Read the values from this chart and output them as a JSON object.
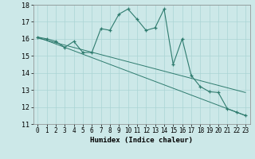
{
  "xlabel": "Humidex (Indice chaleur)",
  "background_color": "#cce8e8",
  "line_color": "#2e7b6e",
  "xlim": [
    -0.5,
    23.5
  ],
  "ylim": [
    11,
    18
  ],
  "yticks": [
    11,
    12,
    13,
    14,
    15,
    16,
    17,
    18
  ],
  "xticks": [
    0,
    1,
    2,
    3,
    4,
    5,
    6,
    7,
    8,
    9,
    10,
    11,
    12,
    13,
    14,
    15,
    16,
    17,
    18,
    19,
    20,
    21,
    22,
    23
  ],
  "curve1_x": [
    0,
    1,
    2,
    3,
    4,
    5,
    6,
    7,
    8,
    9,
    10,
    11,
    12,
    13,
    14,
    15,
    16,
    17,
    18,
    19,
    20,
    21,
    22,
    23
  ],
  "curve1_y": [
    16.1,
    16.0,
    15.85,
    15.5,
    15.85,
    15.2,
    15.2,
    16.6,
    16.5,
    17.45,
    17.75,
    17.15,
    16.5,
    16.65,
    17.75,
    14.5,
    16.0,
    13.85,
    13.2,
    12.9,
    12.85,
    11.9,
    11.7,
    11.5
  ],
  "line1_x": [
    0,
    23
  ],
  "line1_y": [
    16.1,
    11.5
  ],
  "line2_x": [
    0,
    23
  ],
  "line2_y": [
    16.05,
    12.85
  ],
  "xlabel_fontsize": 6.5,
  "tick_fontsize": 6.0,
  "grid_color": "#aad4d4",
  "spine_color": "#888888"
}
